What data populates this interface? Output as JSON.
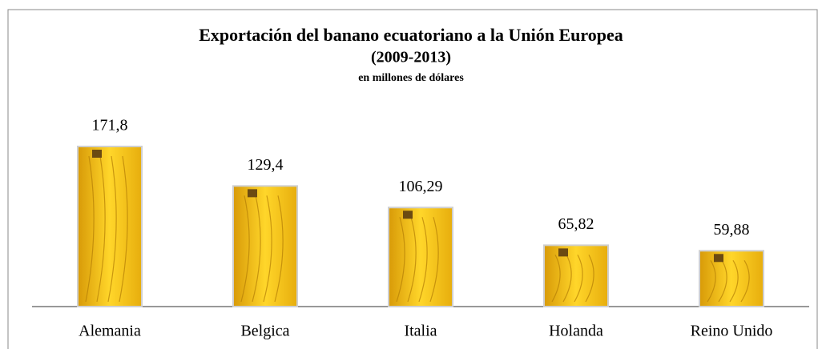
{
  "chart_data": {
    "type": "bar",
    "title": "Exportación del banano ecuatoriano a la Unión Europea",
    "subtitle": "(2009-2013)",
    "unit_label": "en millones de dólares",
    "categories": [
      "Alemania",
      "Belgica",
      "Italia",
      "Holanda",
      "Reino Unido"
    ],
    "values": [
      171.8,
      129.4,
      106.29,
      65.82,
      59.88
    ],
    "value_labels": [
      "171,8",
      "129,4",
      "106,29",
      "65,82",
      "59,88"
    ],
    "color": "#f2c318"
  }
}
